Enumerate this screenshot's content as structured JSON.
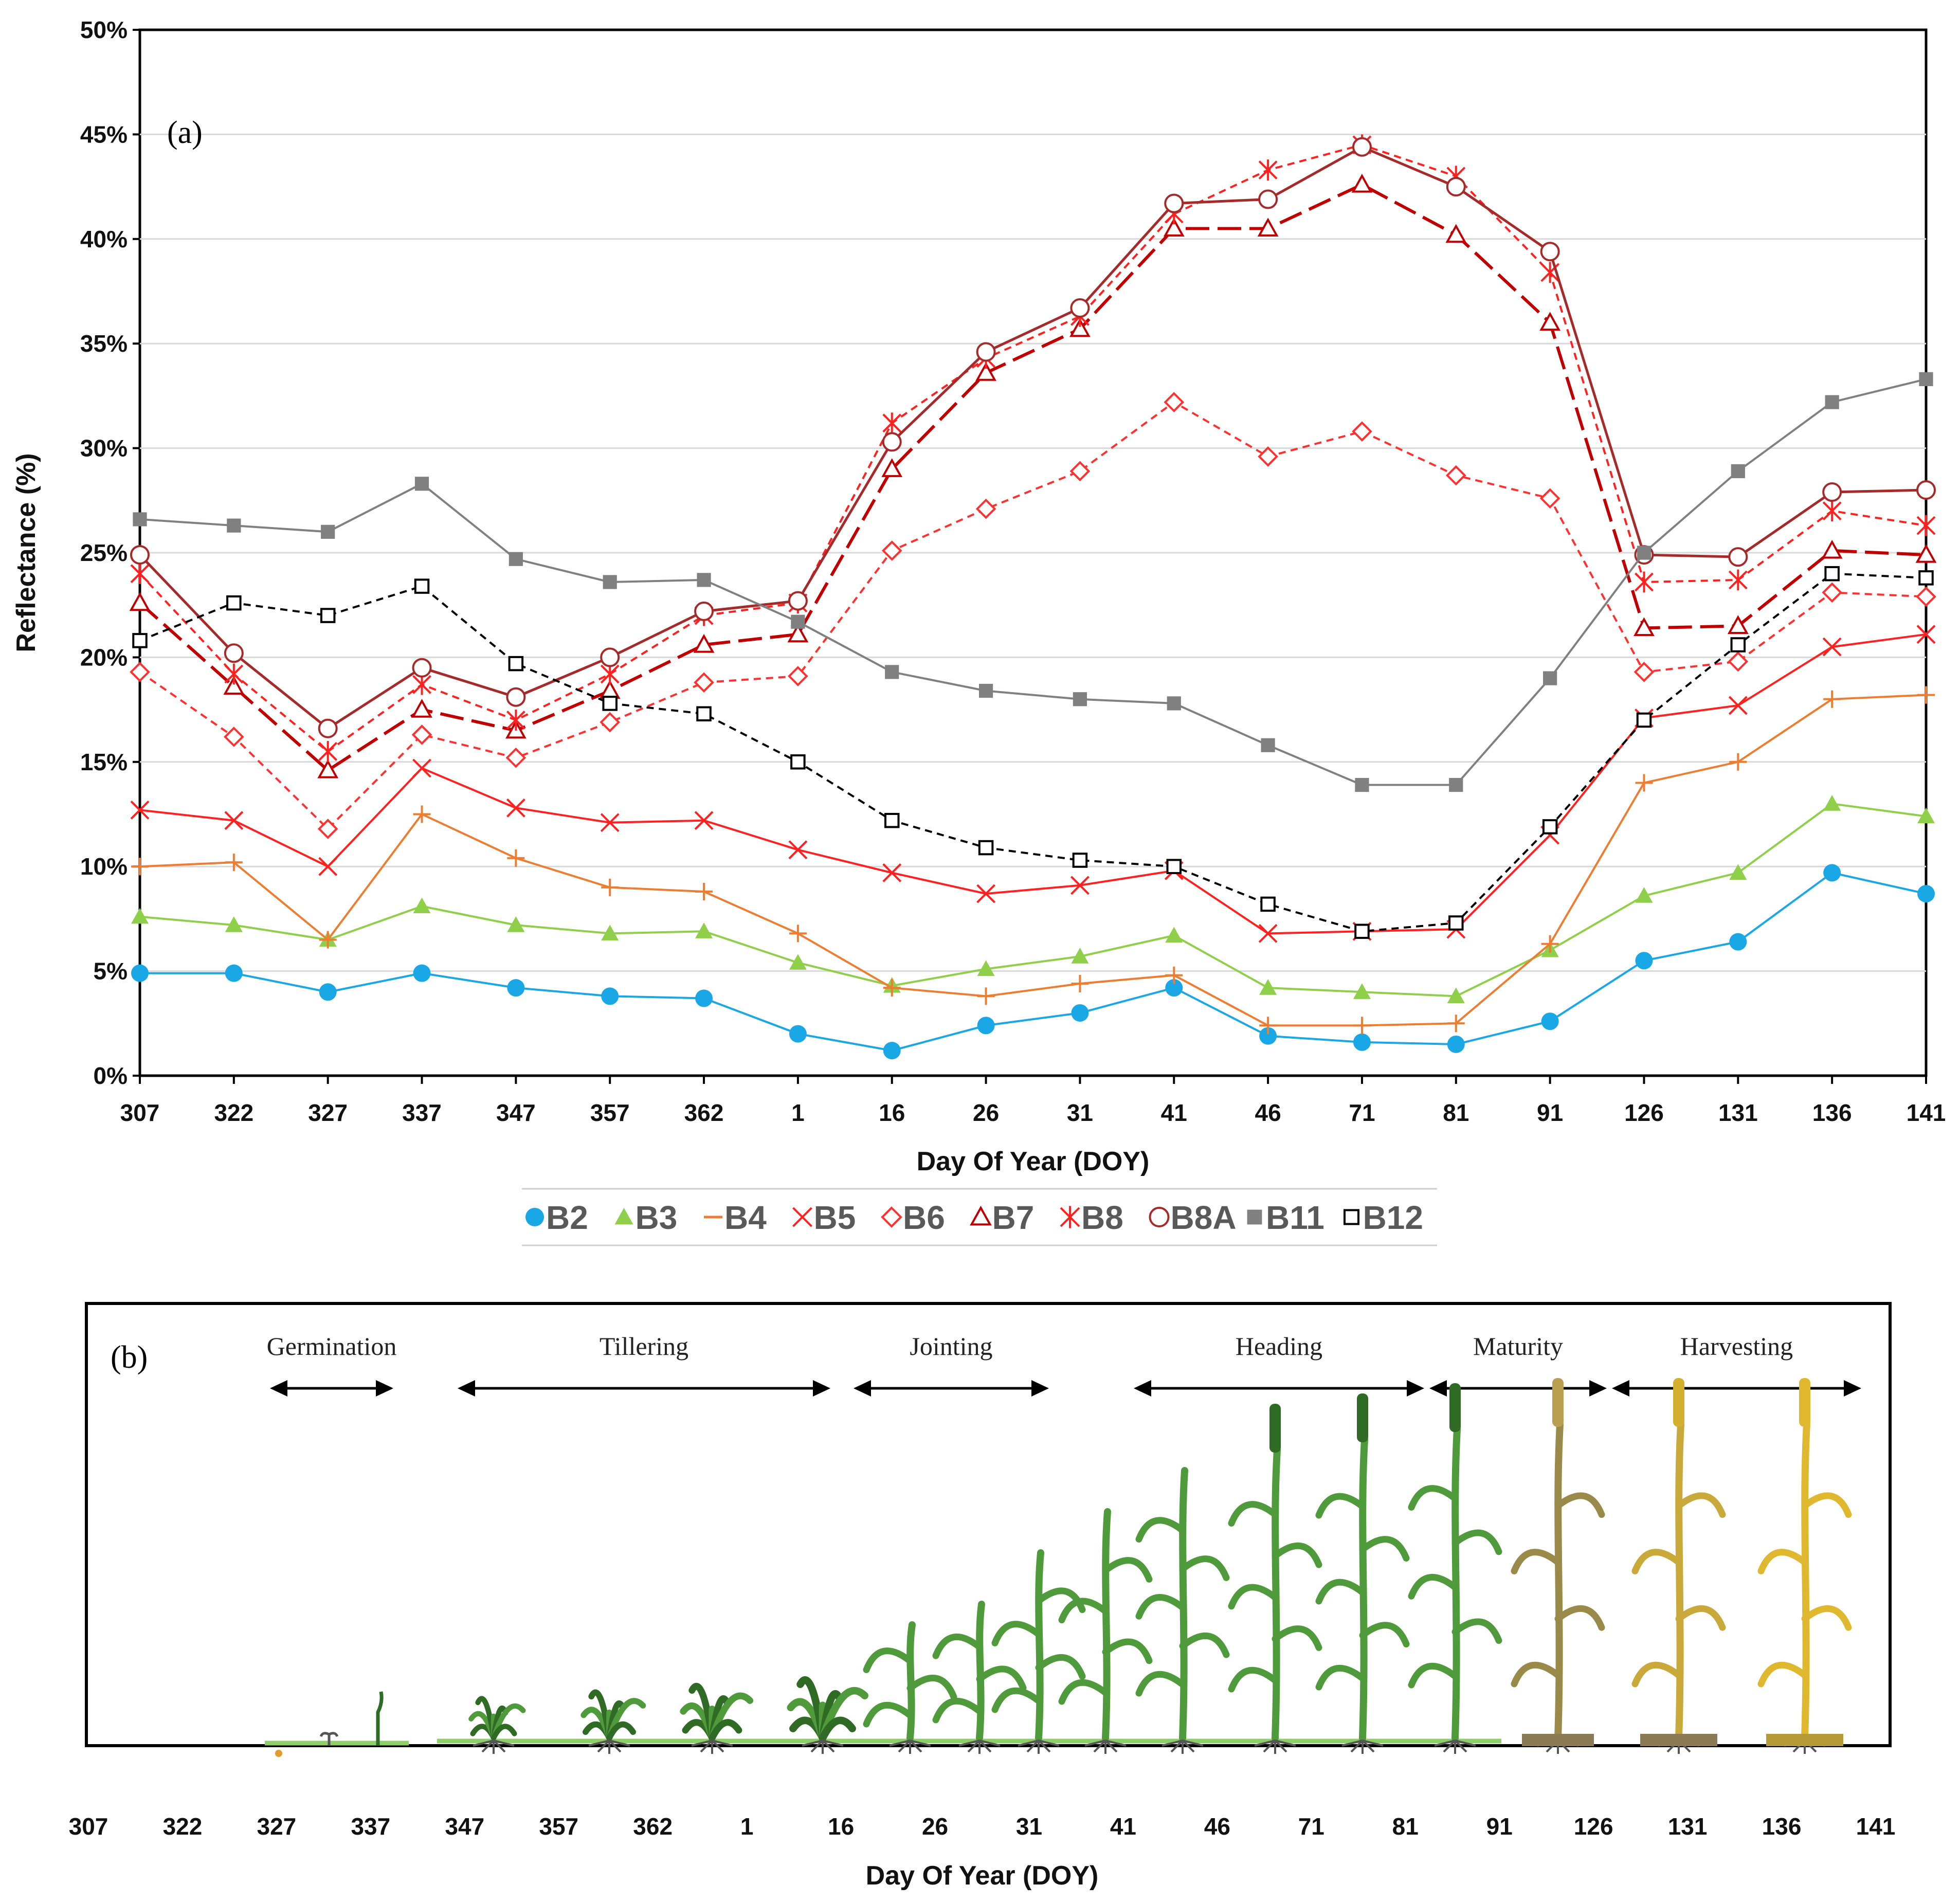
{
  "chart_data": [
    {
      "panel": "(a)",
      "type": "line",
      "xlabel": "Day Of Year (DOY)",
      "ylabel": "Reflectance (%)",
      "ylim": [
        0,
        50
      ],
      "y_ticks": [
        "0%",
        "5%",
        "10%",
        "15%",
        "20%",
        "25%",
        "30%",
        "35%",
        "40%",
        "45%",
        "50%"
      ],
      "grid": "horizontal",
      "legend_position": "bottom",
      "categories": [
        "307",
        "322",
        "327",
        "337",
        "347",
        "357",
        "362",
        "1",
        "16",
        "26",
        "31",
        "41",
        "46",
        "71",
        "81",
        "91",
        "126",
        "131",
        "136",
        "141"
      ],
      "series": [
        {
          "name": "B2",
          "color": "#1aa7e6",
          "marker": "filled-circle",
          "dash": "solid",
          "values": [
            4.9,
            4.9,
            4.0,
            4.9,
            4.2,
            3.8,
            3.7,
            2.0,
            1.2,
            2.4,
            3.0,
            4.2,
            1.9,
            1.6,
            1.5,
            2.6,
            5.5,
            6.4,
            9.7,
            8.7
          ]
        },
        {
          "name": "B3",
          "color": "#8fcf4a",
          "marker": "filled-triangle",
          "dash": "solid",
          "values": [
            7.6,
            7.2,
            6.5,
            8.1,
            7.2,
            6.8,
            6.9,
            5.4,
            4.3,
            5.1,
            5.7,
            6.7,
            4.2,
            4.0,
            3.8,
            6.0,
            8.6,
            9.7,
            13.0,
            12.4
          ]
        },
        {
          "name": "B4",
          "color": "#ed7d31",
          "marker": "plus",
          "dash": "solid",
          "values": [
            10.0,
            10.2,
            6.5,
            12.5,
            10.4,
            9.0,
            8.8,
            6.8,
            4.2,
            3.8,
            4.4,
            4.8,
            2.4,
            2.4,
            2.5,
            6.3,
            14.0,
            15.0,
            18.0,
            18.2
          ]
        },
        {
          "name": "B5",
          "color": "#ff2020",
          "marker": "cross",
          "dash": "solid",
          "values": [
            12.7,
            12.2,
            10.0,
            14.7,
            12.8,
            12.1,
            12.2,
            10.8,
            9.7,
            8.7,
            9.1,
            9.8,
            6.8,
            6.9,
            7.0,
            11.5,
            17.1,
            17.7,
            20.5,
            21.1
          ]
        },
        {
          "name": "B6",
          "color": "#ff3030",
          "marker": "open-diamond",
          "dash": "short",
          "values": [
            19.3,
            16.2,
            11.8,
            16.3,
            15.2,
            16.9,
            18.8,
            19.1,
            25.1,
            27.1,
            28.9,
            32.2,
            29.6,
            30.8,
            28.7,
            27.6,
            19.3,
            19.8,
            23.1,
            22.9
          ]
        },
        {
          "name": "B7",
          "color": "#c00000",
          "marker": "open-triangle",
          "dash": "long",
          "values": [
            22.6,
            18.6,
            14.6,
            17.5,
            16.5,
            18.4,
            20.6,
            21.1,
            29.0,
            33.6,
            35.7,
            40.5,
            40.5,
            42.6,
            40.2,
            36.0,
            21.4,
            21.5,
            25.1,
            24.9
          ]
        },
        {
          "name": "B8",
          "color": "#ff2020",
          "marker": "asterisk",
          "dash": "short",
          "values": [
            24.0,
            19.2,
            15.5,
            18.7,
            17.0,
            19.2,
            22.0,
            22.6,
            31.2,
            34.3,
            36.3,
            41.2,
            43.3,
            44.5,
            43.0,
            38.4,
            23.6,
            23.7,
            27.0,
            26.3
          ]
        },
        {
          "name": "B8A",
          "color": "#a52a2a",
          "marker": "open-circle",
          "dash": "solid",
          "values": [
            24.9,
            20.2,
            16.6,
            19.5,
            18.1,
            20.0,
            22.2,
            22.7,
            30.3,
            34.6,
            36.7,
            41.7,
            41.9,
            44.4,
            42.5,
            39.4,
            24.9,
            24.8,
            27.9,
            28.0
          ]
        },
        {
          "name": "B11",
          "color": "#808080",
          "marker": "filled-square",
          "dash": "solid",
          "values": [
            26.6,
            26.3,
            26.0,
            28.3,
            24.7,
            23.6,
            23.7,
            21.7,
            19.3,
            18.4,
            18.0,
            17.8,
            15.8,
            13.9,
            13.9,
            19.0,
            25.0,
            28.9,
            32.2,
            33.3
          ]
        },
        {
          "name": "B12",
          "color": "#000000",
          "marker": "open-square",
          "dash": "short",
          "values": [
            20.8,
            22.6,
            22.0,
            23.4,
            19.7,
            17.8,
            17.3,
            15.0,
            12.2,
            10.9,
            10.3,
            10.0,
            8.2,
            6.9,
            7.3,
            11.9,
            17.0,
            20.6,
            24.0,
            23.8
          ]
        }
      ]
    },
    {
      "panel": "(b)",
      "type": "diagram",
      "xlabel": "Day Of Year (DOY)",
      "categories": [
        "307",
        "322",
        "327",
        "337",
        "347",
        "357",
        "362",
        "1",
        "16",
        "26",
        "31",
        "41",
        "46",
        "71",
        "81",
        "91",
        "126",
        "131",
        "136",
        "141"
      ],
      "stages": [
        {
          "label": "Germination",
          "start": "327",
          "end": "337"
        },
        {
          "label": "Tillering",
          "start": "347",
          "end": "16"
        },
        {
          "label": "Jointing",
          "start": "16",
          "end": "31"
        },
        {
          "label": "Heading",
          "start": "41",
          "end": "81"
        },
        {
          "label": "Maturity",
          "start": "81",
          "end": "126"
        },
        {
          "label": "Harvesting",
          "start": "126",
          "end": "141"
        }
      ],
      "plant_colors": {
        "green": "#4f9a3a",
        "dark_green": "#2f6b25",
        "ripe": "#c8a93a",
        "dry": "#9a8a4a",
        "soil": "#8a7a55"
      }
    }
  ]
}
